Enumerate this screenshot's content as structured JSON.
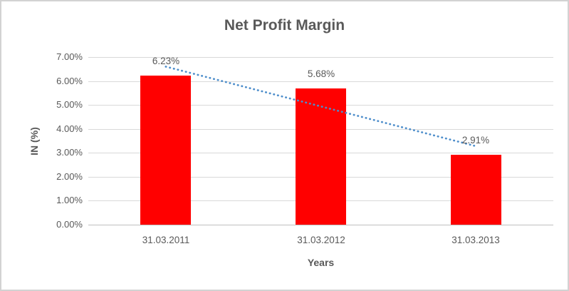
{
  "chart_data": {
    "type": "bar",
    "title": "Net Profit Margin",
    "xlabel": "Years",
    "ylabel": "IN (%)",
    "categories": [
      "31.03.2011",
      "31.03.2012",
      "31.03.2013"
    ],
    "series": [
      {
        "name": "Net Profit Margin",
        "values": [
          6.23,
          5.68,
          2.91
        ]
      }
    ],
    "data_labels": [
      "6.23%",
      "5.68%",
      "2.91%"
    ],
    "y_ticks": [
      "0.00%",
      "1.00%",
      "2.00%",
      "3.00%",
      "4.00%",
      "5.00%",
      "6.00%",
      "7.00%"
    ],
    "ylim": [
      0,
      7
    ],
    "grid": true,
    "legend": "none",
    "bar_color": "#ff0000",
    "gridline_color": "#d9d9d9",
    "axis_line_color": "#bfbfbf",
    "text_color": "#595959",
    "trendline": {
      "type": "linear",
      "style": "dotted",
      "color": "#4e8ecb"
    }
  }
}
